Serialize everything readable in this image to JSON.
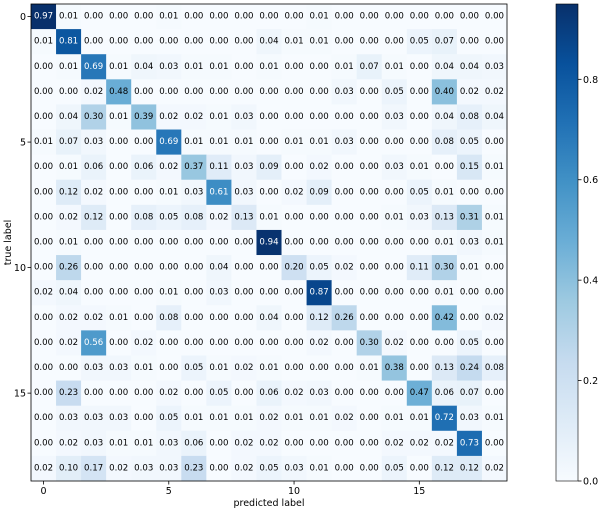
{
  "chart_data": {
    "type": "heatmap",
    "title": "",
    "xlabel": "predicted label",
    "ylabel": "true label",
    "x_ticks": [
      0,
      5,
      10,
      15
    ],
    "y_ticks": [
      0,
      5,
      10,
      15
    ],
    "colormap": "Blues",
    "colorbar": {
      "range": [
        0.0,
        0.95
      ],
      "ticks": [
        0.0,
        0.2,
        0.4,
        0.6,
        0.8
      ],
      "tick_labels": [
        "0.0",
        "0.2",
        "0.4",
        "0.6",
        "0.8"
      ]
    },
    "colors": {
      "low": "#f7fbff",
      "high": "#08306b"
    },
    "matrix": [
      [
        "0.97",
        "0.01",
        "0.00",
        "0.00",
        "0.00",
        "0.01",
        "0.00",
        "0.00",
        "0.00",
        "0.00",
        "0.00",
        "0.01",
        "0.00",
        "0.00",
        "0.00",
        "0.00",
        "0.00",
        "0.00",
        "0.00"
      ],
      [
        "0.01",
        "0.81",
        "0.00",
        "0.00",
        "0.00",
        "0.00",
        "0.00",
        "0.00",
        "0.00",
        "0.04",
        "0.01",
        "0.01",
        "0.00",
        "0.00",
        "0.00",
        "0.05",
        "0.07",
        "0.00",
        "0.00"
      ],
      [
        "0.00",
        "0.01",
        "0.69",
        "0.01",
        "0.04",
        "0.03",
        "0.01",
        "0.01",
        "0.00",
        "0.01",
        "0.00",
        "0.00",
        "0.01",
        "0.07",
        "0.01",
        "0.00",
        "0.04",
        "0.04",
        "0.03"
      ],
      [
        "0.00",
        "0.00",
        "0.02",
        "0.48",
        "0.00",
        "0.00",
        "0.00",
        "0.00",
        "0.00",
        "0.00",
        "0.00",
        "0.00",
        "0.03",
        "0.00",
        "0.05",
        "0.00",
        "0.40",
        "0.02",
        "0.02"
      ],
      [
        "0.00",
        "0.04",
        "0.30",
        "0.01",
        "0.39",
        "0.02",
        "0.02",
        "0.01",
        "0.03",
        "0.00",
        "0.00",
        "0.00",
        "0.00",
        "0.00",
        "0.03",
        "0.00",
        "0.04",
        "0.08",
        "0.04"
      ],
      [
        "0.01",
        "0.07",
        "0.03",
        "0.00",
        "0.00",
        "0.69",
        "0.01",
        "0.01",
        "0.01",
        "0.00",
        "0.01",
        "0.01",
        "0.03",
        "0.00",
        "0.00",
        "0.00",
        "0.08",
        "0.05",
        "0.00"
      ],
      [
        "0.00",
        "0.01",
        "0.06",
        "0.00",
        "0.06",
        "0.02",
        "0.37",
        "0.11",
        "0.03",
        "0.09",
        "0.00",
        "0.02",
        "0.00",
        "0.00",
        "0.03",
        "0.01",
        "0.00",
        "0.15",
        "0.01"
      ],
      [
        "0.00",
        "0.12",
        "0.02",
        "0.00",
        "0.00",
        "0.01",
        "0.03",
        "0.61",
        "0.03",
        "0.00",
        "0.02",
        "0.09",
        "0.00",
        "0.00",
        "0.00",
        "0.05",
        "0.01",
        "0.00",
        "0.00"
      ],
      [
        "0.00",
        "0.02",
        "0.12",
        "0.00",
        "0.08",
        "0.05",
        "0.08",
        "0.02",
        "0.13",
        "0.01",
        "0.00",
        "0.00",
        "0.00",
        "0.00",
        "0.01",
        "0.03",
        "0.13",
        "0.31",
        "0.01"
      ],
      [
        "0.00",
        "0.01",
        "0.00",
        "0.00",
        "0.00",
        "0.00",
        "0.00",
        "0.00",
        "0.00",
        "0.94",
        "0.00",
        "0.00",
        "0.00",
        "0.00",
        "0.00",
        "0.00",
        "0.01",
        "0.03",
        "0.01"
      ],
      [
        "0.00",
        "0.26",
        "0.00",
        "0.00",
        "0.00",
        "0.00",
        "0.00",
        "0.04",
        "0.00",
        "0.00",
        "0.20",
        "0.05",
        "0.02",
        "0.00",
        "0.00",
        "0.11",
        "0.30",
        "0.01",
        "0.00"
      ],
      [
        "0.02",
        "0.04",
        "0.00",
        "0.00",
        "0.00",
        "0.01",
        "0.00",
        "0.03",
        "0.00",
        "0.00",
        "0.00",
        "0.87",
        "0.00",
        "0.00",
        "0.00",
        "0.00",
        "0.01",
        "0.00",
        "0.00"
      ],
      [
        "0.00",
        "0.02",
        "0.02",
        "0.01",
        "0.00",
        "0.08",
        "0.00",
        "0.00",
        "0.00",
        "0.04",
        "0.00",
        "0.12",
        "0.26",
        "0.00",
        "0.00",
        "0.00",
        "0.42",
        "0.00",
        "0.02"
      ],
      [
        "0.00",
        "0.02",
        "0.56",
        "0.00",
        "0.02",
        "0.00",
        "0.00",
        "0.00",
        "0.00",
        "0.00",
        "0.00",
        "0.02",
        "0.00",
        "0.30",
        "0.02",
        "0.00",
        "0.00",
        "0.05",
        "0.00"
      ],
      [
        "0.00",
        "0.00",
        "0.03",
        "0.03",
        "0.01",
        "0.00",
        "0.05",
        "0.01",
        "0.02",
        "0.01",
        "0.00",
        "0.00",
        "0.00",
        "0.01",
        "0.38",
        "0.00",
        "0.13",
        "0.24",
        "0.08"
      ],
      [
        "0.00",
        "0.23",
        "0.00",
        "0.00",
        "0.00",
        "0.02",
        "0.00",
        "0.05",
        "0.00",
        "0.06",
        "0.02",
        "0.03",
        "0.00",
        "0.00",
        "0.00",
        "0.47",
        "0.06",
        "0.07",
        "0.00"
      ],
      [
        "0.00",
        "0.03",
        "0.03",
        "0.03",
        "0.00",
        "0.05",
        "0.01",
        "0.01",
        "0.01",
        "0.02",
        "0.01",
        "0.01",
        "0.02",
        "0.00",
        "0.01",
        "0.01",
        "0.72",
        "0.03",
        "0.01"
      ],
      [
        "0.00",
        "0.02",
        "0.03",
        "0.01",
        "0.01",
        "0.03",
        "0.06",
        "0.00",
        "0.02",
        "0.02",
        "0.00",
        "0.00",
        "0.00",
        "0.00",
        "0.02",
        "0.02",
        "0.02",
        "0.73",
        "0.00"
      ],
      [
        "0.02",
        "0.10",
        "0.17",
        "0.02",
        "0.03",
        "0.03",
        "0.23",
        "0.00",
        "0.02",
        "0.05",
        "0.03",
        "0.01",
        "0.00",
        "0.00",
        "0.05",
        "0.00",
        "0.12",
        "0.12",
        "0.02"
      ]
    ]
  }
}
